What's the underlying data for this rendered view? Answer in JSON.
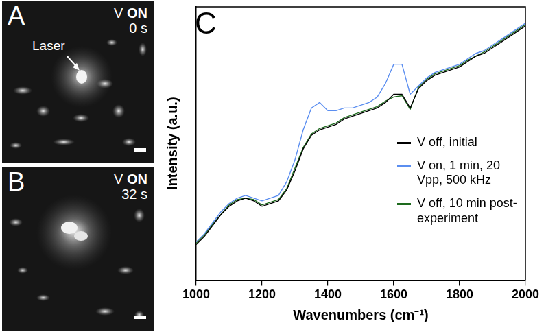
{
  "panels": [
    {
      "letter": "A",
      "voltage_label": "V",
      "voltage_state": "ON",
      "time": "0 s",
      "annotation": "Laser"
    },
    {
      "letter": "B",
      "voltage_label": "V",
      "voltage_state": "ON",
      "time": "32 s"
    }
  ],
  "chart_data": {
    "type": "line",
    "panel_label": "C",
    "xlabel": "Wavenumbers (cm⁻¹)",
    "ylabel": "Intensity (a.u.)",
    "xlim": [
      1000,
      2000
    ],
    "xticks": [
      1000,
      1200,
      1400,
      1600,
      1800,
      2000
    ],
    "ylim": [
      0,
      100
    ],
    "tick_labels": "x",
    "grid": false,
    "legend": "lower right",
    "x": [
      1000,
      1025,
      1050,
      1075,
      1100,
      1125,
      1150,
      1175,
      1200,
      1225,
      1250,
      1275,
      1300,
      1325,
      1350,
      1375,
      1400,
      1425,
      1450,
      1475,
      1500,
      1525,
      1550,
      1575,
      1600,
      1625,
      1650,
      1675,
      1700,
      1725,
      1750,
      1775,
      1800,
      1825,
      1850,
      1875,
      1900,
      1925,
      1950,
      1975,
      2000
    ],
    "series": [
      {
        "name": "V off, initial",
        "color": "#000000",
        "values": [
          13,
          16,
          20,
          24,
          27,
          29,
          30,
          29,
          27,
          28,
          29,
          33,
          40,
          48,
          53,
          55,
          56,
          57,
          59,
          60,
          61,
          62,
          63,
          65,
          68,
          68,
          63,
          70,
          73,
          75,
          76,
          77,
          78,
          80,
          82,
          83,
          85,
          87,
          89,
          91,
          93
        ]
      },
      {
        "name": "V on, 1 min, 20 Vpp, 500 kHz",
        "color": "#5b8ef0",
        "values": [
          14,
          17,
          21,
          25,
          28,
          30,
          31,
          30,
          29,
          30,
          31,
          36,
          44,
          55,
          63,
          65,
          62,
          62,
          63,
          63,
          64,
          65,
          67,
          72,
          79,
          79,
          68,
          71,
          74,
          76,
          77,
          78,
          79,
          81,
          83,
          84,
          86,
          88,
          90,
          92,
          94
        ]
      },
      {
        "name": "V off, 10 min post-experiment",
        "color": "#1e6b1e",
        "values": [
          13.5,
          16.5,
          20.5,
          24,
          27.5,
          29.5,
          30,
          29.5,
          27.5,
          28.5,
          29.5,
          33.5,
          41,
          48.5,
          53.5,
          55.5,
          56.5,
          57.5,
          59.5,
          60.5,
          61.5,
          62.5,
          63.5,
          65.5,
          67,
          67.5,
          62.5,
          70.5,
          73.5,
          75.5,
          76.5,
          77.5,
          78.5,
          80.5,
          82,
          83.5,
          85.5,
          87.5,
          89.5,
          91.5,
          93.5
        ]
      }
    ]
  }
}
